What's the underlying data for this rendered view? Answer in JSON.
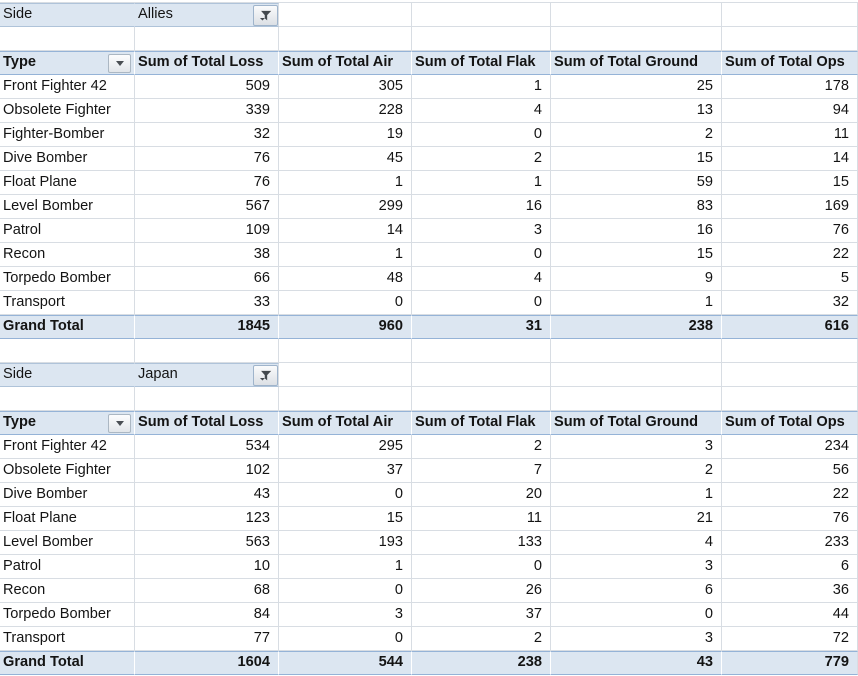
{
  "app": {
    "view": "pivot-table-report"
  },
  "colors": {
    "band_fill": "#DCE6F1",
    "accent_border": "#95B3D7",
    "gridline": "#D8DDE3",
    "text": "#141414"
  },
  "filter_field": "Side",
  "columns": [
    "Type",
    "Sum of Total Loss",
    "Sum of Total Air",
    "Sum of Total Flak",
    "Sum of Total Ground",
    "Sum of Total Ops"
  ],
  "icons": {
    "filter_button": "funnel-icon",
    "type_dropdown": "chevron-down-icon"
  },
  "tables": [
    {
      "side": "Allies",
      "rows": [
        [
          "Front Fighter 42",
          509,
          305,
          1,
          25,
          178
        ],
        [
          "Obsolete Fighter",
          339,
          228,
          4,
          13,
          94
        ],
        [
          "Fighter-Bomber",
          32,
          19,
          0,
          2,
          11
        ],
        [
          "Dive Bomber",
          76,
          45,
          2,
          15,
          14
        ],
        [
          "Float Plane",
          76,
          1,
          1,
          59,
          15
        ],
        [
          "Level Bomber",
          567,
          299,
          16,
          83,
          169
        ],
        [
          "Patrol",
          109,
          14,
          3,
          16,
          76
        ],
        [
          "Recon",
          38,
          1,
          0,
          15,
          22
        ],
        [
          "Torpedo Bomber",
          66,
          48,
          4,
          9,
          5
        ],
        [
          "Transport",
          33,
          0,
          0,
          1,
          32
        ]
      ],
      "totals": [
        [
          "Grand Total",
          1845,
          960,
          31,
          238,
          616
        ]
      ]
    },
    {
      "side": "Japan",
      "rows": [
        [
          "Front Fighter 42",
          534,
          295,
          2,
          3,
          234
        ],
        [
          "Obsolete Fighter",
          102,
          37,
          7,
          2,
          56
        ],
        [
          "Dive Bomber",
          43,
          0,
          20,
          1,
          22
        ],
        [
          "Float Plane",
          123,
          15,
          11,
          21,
          76
        ],
        [
          "Level Bomber",
          563,
          193,
          133,
          4,
          233
        ],
        [
          "Patrol",
          10,
          1,
          0,
          3,
          6
        ],
        [
          "Recon",
          68,
          0,
          26,
          6,
          36
        ],
        [
          "Torpedo Bomber",
          84,
          3,
          37,
          0,
          44
        ],
        [
          "Transport",
          77,
          0,
          2,
          3,
          72
        ]
      ],
      "totals": [
        [
          "Grand Total",
          1604,
          544,
          238,
          43,
          779
        ]
      ]
    }
  ]
}
